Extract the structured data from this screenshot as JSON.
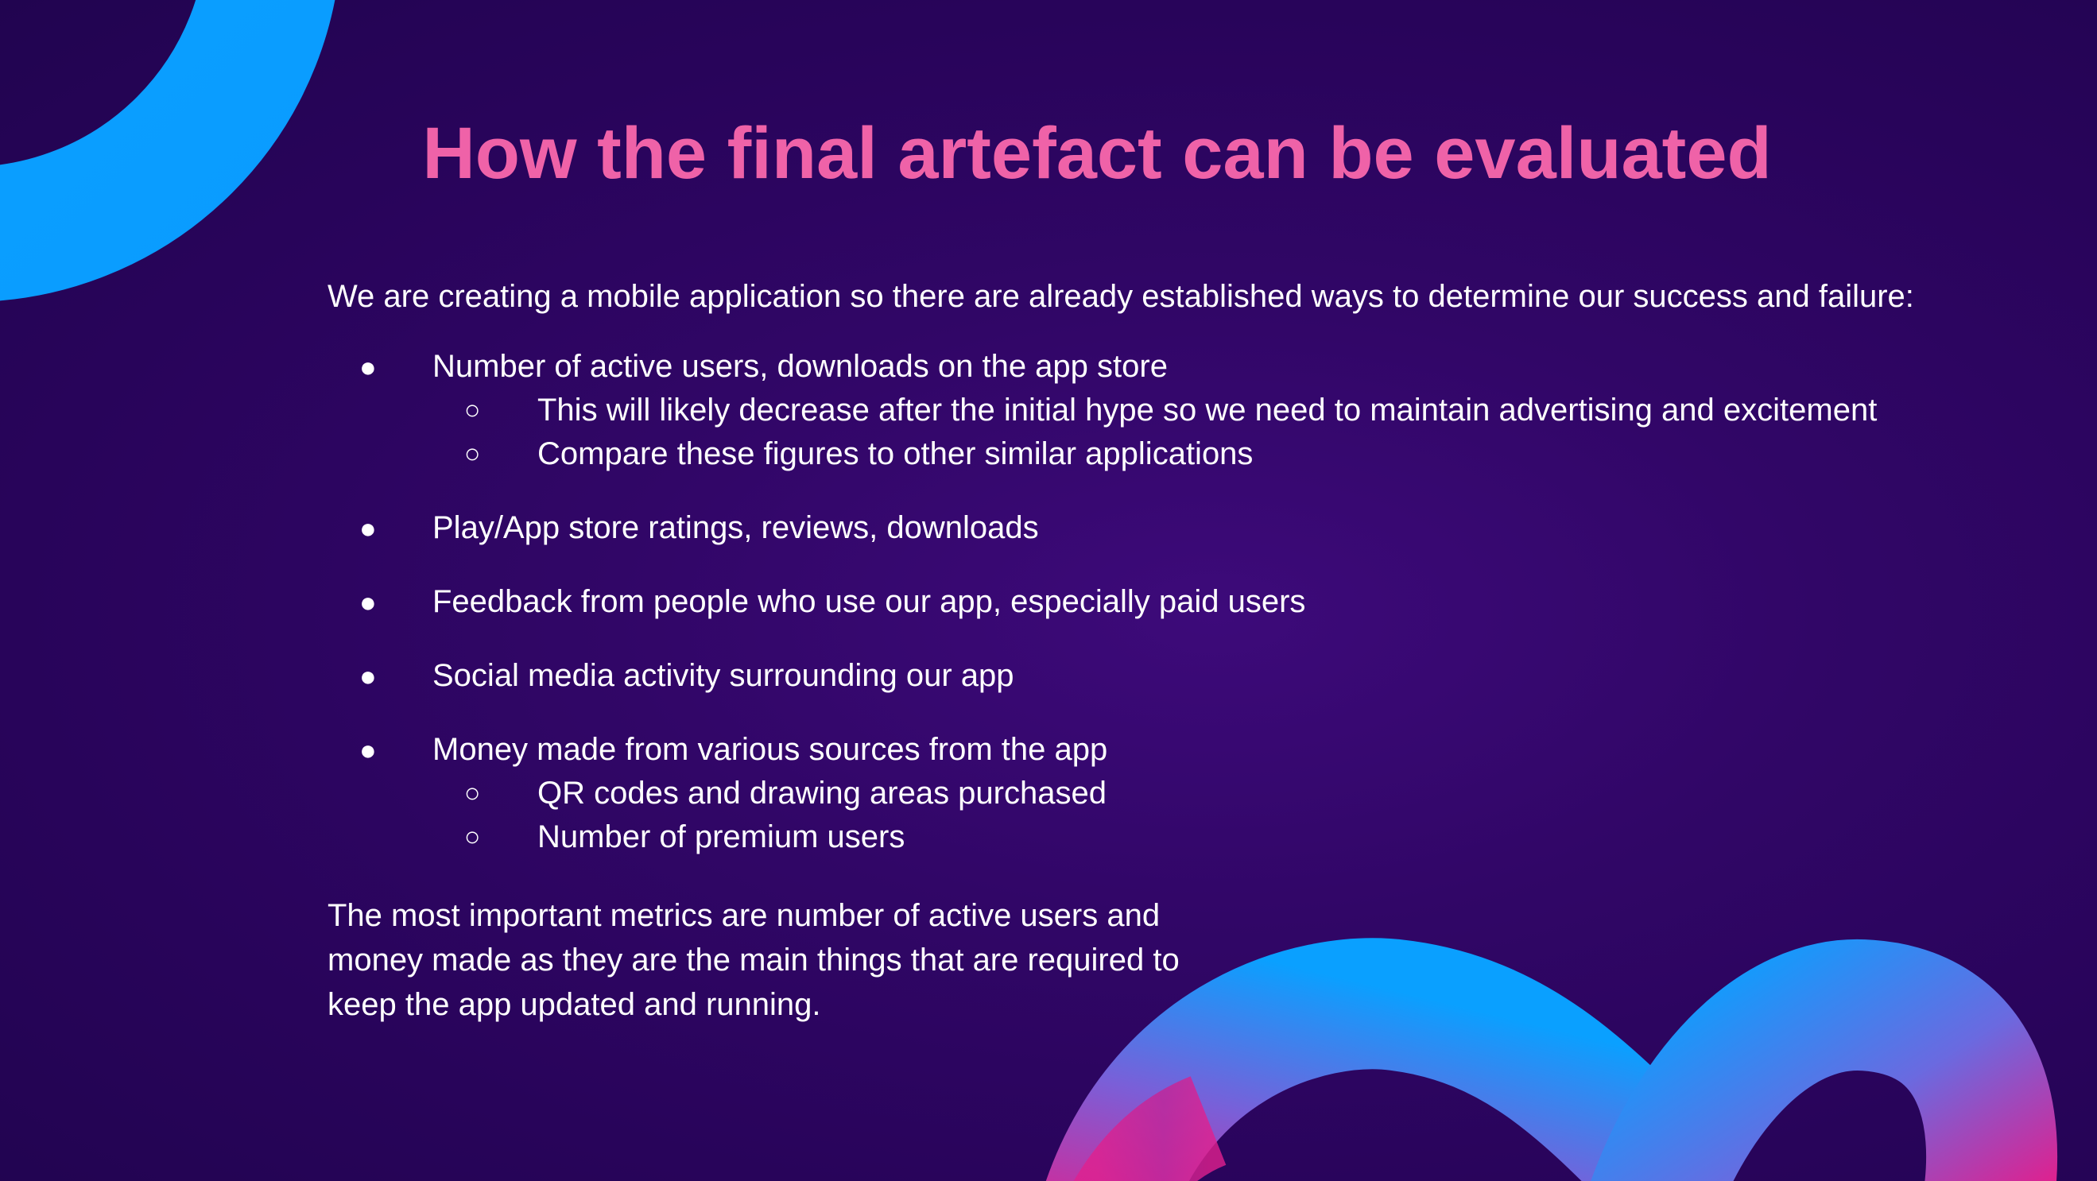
{
  "slide": {
    "title": "How the final artefact can be evaluated",
    "intro": "We are creating a mobile application so there are already established ways to determine our success and failure:",
    "bullet_glyph": "●",
    "sub_bullet_glyph": "○",
    "bullets": [
      {
        "text": "Number of active users, downloads on the app store",
        "sub": [
          "This will likely decrease after the initial hype so we need to maintain advertising and excitement",
          "Compare these figures to other similar applications"
        ]
      },
      {
        "text": "Play/App store ratings, reviews, downloads",
        "sub": []
      },
      {
        "text": "Feedback from people who use our app, especially paid users",
        "sub": []
      },
      {
        "text": "Social media activity surrounding our app",
        "sub": []
      },
      {
        "text": "Money made from various sources from the app",
        "sub": [
          "QR codes and drawing areas purchased",
          "Number of premium users"
        ]
      }
    ],
    "conclusion": "The most important metrics are number of active users and money made as they are the main things that are required to keep the app updated and running."
  },
  "colors": {
    "background": "#2a0560",
    "title": "#ef62a8",
    "text": "#ffffff",
    "ribbon_blue": "#0aa0ff",
    "ribbon_pink": "#e0208e"
  }
}
